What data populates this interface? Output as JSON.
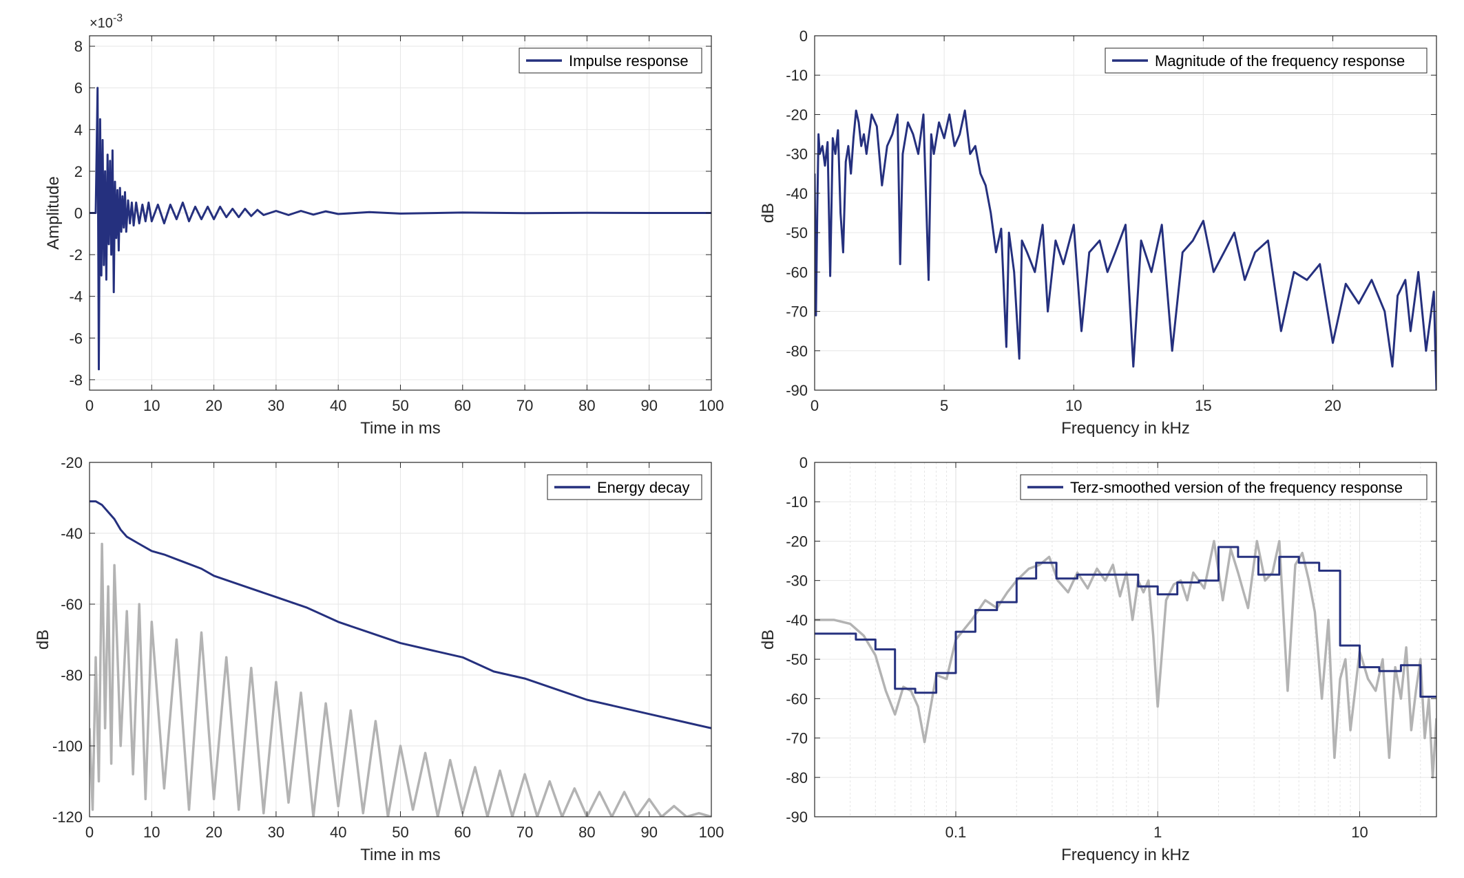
{
  "figure": {
    "colors": {
      "series": "#25307e",
      "raw": "#b3b3b3",
      "grid": "#e6e6e6",
      "axis": "#262626"
    }
  },
  "chart_data": [
    {
      "id": "impulse",
      "type": "line",
      "xlabel": "Time in ms",
      "ylabel": "Amplitude",
      "exponent_label": "×10",
      "exponent_sup": "-3",
      "xlim": [
        0,
        100
      ],
      "ylim": [
        -8.5,
        8.5
      ],
      "xticks": [
        0,
        10,
        20,
        30,
        40,
        50,
        60,
        70,
        80,
        90,
        100
      ],
      "yticks": [
        -8,
        -6,
        -4,
        -2,
        0,
        2,
        4,
        6,
        8
      ],
      "legend": "top-right",
      "series": [
        {
          "name": "Impulse response",
          "x": [
            0,
            1.0,
            1.3,
            1.5,
            1.7,
            1.9,
            2.1,
            2.3,
            2.5,
            2.7,
            2.9,
            3.1,
            3.3,
            3.5,
            3.7,
            3.9,
            4.1,
            4.3,
            4.5,
            4.7,
            4.9,
            5.1,
            5.3,
            5.5,
            5.7,
            5.9,
            6.2,
            6.5,
            6.8,
            7.1,
            7.5,
            8,
            8.5,
            9,
            9.5,
            10,
            11,
            12,
            13,
            14,
            15,
            16,
            17,
            18,
            19,
            20,
            21,
            22,
            23,
            24,
            25,
            26,
            27,
            28,
            30,
            32,
            34,
            36,
            38,
            40,
            45,
            50,
            60,
            70,
            80,
            90,
            100
          ],
          "y": [
            0,
            0,
            6.0,
            -7.5,
            4.5,
            -3.0,
            3.5,
            -2.5,
            2.0,
            -3.2,
            2.8,
            -1.5,
            2.5,
            -2.0,
            3.0,
            -3.8,
            1.5,
            -1.2,
            1.1,
            -1.8,
            1.2,
            -0.9,
            0.8,
            -0.7,
            1.0,
            -0.9,
            0.6,
            -0.5,
            0.5,
            -0.6,
            0.5,
            -0.5,
            0.4,
            -0.4,
            0.5,
            -0.4,
            0.4,
            -0.5,
            0.4,
            -0.3,
            0.5,
            -0.4,
            0.3,
            -0.3,
            0.3,
            -0.3,
            0.3,
            -0.2,
            0.2,
            -0.2,
            0.2,
            -0.15,
            0.15,
            -0.1,
            0.1,
            -0.1,
            0.1,
            -0.08,
            0.08,
            -0.05,
            0.04,
            -0.03,
            0.02,
            -0.01,
            0.01,
            0,
            0
          ]
        }
      ]
    },
    {
      "id": "magnitude",
      "type": "line",
      "xlabel": "Frequency in kHz",
      "ylabel": "dB",
      "xlim": [
        0,
        24
      ],
      "ylim": [
        -90,
        0
      ],
      "xticks": [
        0,
        5,
        10,
        15,
        20
      ],
      "yticks": [
        0,
        -10,
        -20,
        -30,
        -40,
        -50,
        -60,
        -70,
        -80,
        -90
      ],
      "legend": "top-right",
      "series": [
        {
          "name": "Magnitude of the frequency response",
          "x": [
            0,
            0.05,
            0.1,
            0.15,
            0.2,
            0.3,
            0.4,
            0.5,
            0.6,
            0.7,
            0.8,
            0.9,
            1.0,
            1.1,
            1.2,
            1.3,
            1.4,
            1.5,
            1.6,
            1.7,
            1.8,
            1.9,
            2.0,
            2.2,
            2.4,
            2.6,
            2.8,
            3.0,
            3.2,
            3.3,
            3.4,
            3.6,
            3.8,
            4.0,
            4.2,
            4.4,
            4.5,
            4.6,
            4.8,
            5.0,
            5.2,
            5.4,
            5.6,
            5.8,
            6.0,
            6.2,
            6.4,
            6.6,
            6.8,
            7.0,
            7.2,
            7.4,
            7.5,
            7.7,
            7.9,
            8.0,
            8.2,
            8.5,
            8.8,
            9.0,
            9.3,
            9.6,
            10.0,
            10.3,
            10.6,
            11.0,
            11.3,
            11.6,
            12.0,
            12.3,
            12.6,
            13.0,
            13.4,
            13.8,
            14.2,
            14.6,
            15.0,
            15.4,
            15.8,
            16.2,
            16.6,
            17.0,
            17.5,
            18.0,
            18.5,
            19.0,
            19.5,
            20.0,
            20.5,
            21.0,
            21.5,
            22.0,
            22.3,
            22.5,
            22.8,
            23.0,
            23.3,
            23.6,
            23.9,
            24.0
          ],
          "y": [
            -35,
            -71,
            -45,
            -25,
            -30,
            -28,
            -33,
            -27,
            -61,
            -26,
            -30,
            -24,
            -45,
            -55,
            -32,
            -28,
            -35,
            -26,
            -19,
            -22,
            -28,
            -25,
            -30,
            -20,
            -23,
            -38,
            -28,
            -25,
            -20,
            -58,
            -30,
            -22,
            -25,
            -30,
            -20,
            -62,
            -25,
            -30,
            -22,
            -26,
            -20,
            -28,
            -25,
            -19,
            -30,
            -28,
            -35,
            -38,
            -45,
            -55,
            -49,
            -79,
            -50,
            -60,
            -82,
            -52,
            -55,
            -60,
            -48,
            -70,
            -52,
            -58,
            -48,
            -75,
            -55,
            -52,
            -60,
            -55,
            -48,
            -84,
            -52,
            -60,
            -48,
            -80,
            -55,
            -52,
            -47,
            -60,
            -55,
            -50,
            -62,
            -55,
            -52,
            -75,
            -60,
            -62,
            -58,
            -78,
            -63,
            -68,
            -62,
            -70,
            -84,
            -66,
            -62,
            -75,
            -60,
            -80,
            -65,
            -90
          ]
        }
      ]
    },
    {
      "id": "decay",
      "type": "line",
      "xlabel": "Time in ms",
      "ylabel": "dB",
      "xlim": [
        0,
        100
      ],
      "ylim": [
        -120,
        -20
      ],
      "xticks": [
        0,
        10,
        20,
        30,
        40,
        50,
        60,
        70,
        80,
        90,
        100
      ],
      "yticks": [
        -20,
        -40,
        -60,
        -80,
        -100,
        -120
      ],
      "legend": "top-right",
      "series": [
        {
          "name": "Energy decay",
          "x": [
            0,
            1,
            2,
            3,
            4,
            5,
            6,
            8,
            10,
            12,
            15,
            18,
            20,
            25,
            30,
            35,
            40,
            45,
            50,
            55,
            60,
            65,
            70,
            75,
            80,
            85,
            90,
            95,
            100
          ],
          "y": [
            -31,
            -31,
            -32,
            -34,
            -36,
            -39,
            -41,
            -43,
            -45,
            -46,
            -48,
            -50,
            -52,
            -55,
            -58,
            -61,
            -65,
            -68,
            -71,
            -73,
            -75,
            -79,
            -81,
            -84,
            -87,
            -89,
            -91,
            -93,
            -95
          ]
        },
        {
          "x": [
            0,
            0.5,
            1,
            1.5,
            2,
            2.5,
            3,
            3.5,
            4,
            5,
            6,
            7,
            8,
            9,
            10,
            12,
            14,
            16,
            18,
            20,
            22,
            24,
            26,
            28,
            30,
            32,
            34,
            36,
            38,
            40,
            42,
            44,
            46,
            48,
            50,
            52,
            54,
            56,
            58,
            60,
            62,
            64,
            66,
            68,
            70,
            72,
            74,
            76,
            78,
            80,
            82,
            84,
            86,
            88,
            90,
            92,
            94,
            96,
            98,
            100
          ],
          "y": [
            -95,
            -118,
            -75,
            -110,
            -43,
            -95,
            -55,
            -105,
            -49,
            -100,
            -62,
            -108,
            -60,
            -115,
            -65,
            -112,
            -70,
            -118,
            -68,
            -115,
            -75,
            -118,
            -78,
            -119,
            -82,
            -116,
            -85,
            -120,
            -88,
            -117,
            -90,
            -119,
            -93,
            -120,
            -100,
            -118,
            -102,
            -120,
            -104,
            -119,
            -106,
            -120,
            -107,
            -120,
            -108,
            -120,
            -110,
            -120,
            -112,
            -120,
            -113,
            -120,
            -113,
            -120,
            -115,
            -120,
            -117,
            -120,
            -119,
            -120
          ]
        }
      ]
    },
    {
      "id": "terz",
      "type": "line",
      "xlabel": "Frequency in kHz",
      "ylabel": "dB",
      "xscale": "log",
      "xlim": [
        0.02,
        24
      ],
      "ylim": [
        -90,
        0
      ],
      "xticks": [
        0.1,
        1,
        10
      ],
      "xticklabels": [
        "0.1",
        "1",
        "10"
      ],
      "yticks": [
        0,
        -10,
        -20,
        -30,
        -40,
        -50,
        -60,
        -70,
        -80,
        -90
      ],
      "legend": "top-right",
      "series": [
        {
          "name": "Terz-smoothed version of the frequency response",
          "step": true,
          "x": [
            0.02,
            0.032,
            0.04,
            0.05,
            0.063,
            0.08,
            0.1,
            0.125,
            0.16,
            0.2,
            0.25,
            0.315,
            0.4,
            0.5,
            0.63,
            0.8,
            1.0,
            1.25,
            1.6,
            2.0,
            2.5,
            3.15,
            4.0,
            5.0,
            6.3,
            8.0,
            10.0,
            12.5,
            16.0,
            20.0,
            24.0
          ],
          "y": [
            -43.5,
            -45,
            -47.5,
            -57.5,
            -58.5,
            -53.5,
            -43,
            -37.5,
            -35.5,
            -29.5,
            -25.5,
            -29.5,
            -28.5,
            -28.5,
            -28.5,
            -31.5,
            -33.5,
            -30.5,
            -30,
            -21.5,
            -24,
            -28.5,
            -24,
            -25.5,
            -27.5,
            -46.5,
            -52,
            -53,
            -51.5,
            -59.5,
            -59.5
          ]
        },
        {
          "x": [
            0.02,
            0.025,
            0.03,
            0.035,
            0.04,
            0.045,
            0.05,
            0.055,
            0.06,
            0.065,
            0.07,
            0.08,
            0.09,
            0.1,
            0.12,
            0.14,
            0.16,
            0.18,
            0.2,
            0.23,
            0.26,
            0.29,
            0.32,
            0.36,
            0.4,
            0.45,
            0.5,
            0.55,
            0.6,
            0.65,
            0.7,
            0.75,
            0.8,
            0.85,
            0.9,
            0.95,
            1.0,
            1.1,
            1.2,
            1.3,
            1.4,
            1.5,
            1.7,
            1.9,
            2.1,
            2.3,
            2.5,
            2.8,
            3.1,
            3.4,
            3.7,
            4.0,
            4.4,
            4.8,
            5.2,
            5.6,
            6.0,
            6.5,
            7.0,
            7.5,
            8.0,
            8.5,
            9.0,
            10,
            11,
            12,
            13,
            14,
            15,
            16,
            17,
            18,
            19,
            20,
            21,
            22,
            23,
            24
          ],
          "y": [
            -40,
            -40,
            -41,
            -44,
            -49,
            -58,
            -64,
            -57,
            -58,
            -62,
            -71,
            -54,
            -55,
            -45,
            -40,
            -35,
            -37,
            -33,
            -30,
            -27,
            -26,
            -24,
            -30,
            -33,
            -28,
            -32,
            -27,
            -30,
            -26,
            -34,
            -28,
            -40,
            -30,
            -33,
            -30,
            -44,
            -62,
            -35,
            -31,
            -30,
            -35,
            -28,
            -32,
            -20,
            -35,
            -22,
            -28,
            -37,
            -20,
            -30,
            -28,
            -20,
            -58,
            -26,
            -23,
            -30,
            -38,
            -60,
            -40,
            -75,
            -55,
            -50,
            -68,
            -48,
            -55,
            -58,
            -50,
            -75,
            -52,
            -60,
            -47,
            -68,
            -58,
            -50,
            -70,
            -60,
            -80,
            -65
          ]
        }
      ]
    }
  ]
}
